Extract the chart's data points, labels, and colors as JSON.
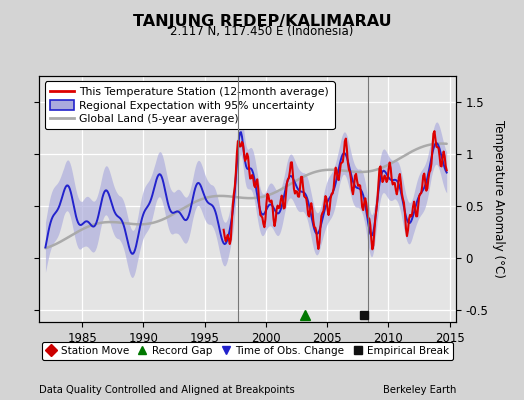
{
  "title": "TANJUNG REDEP/KALIMARAU",
  "subtitle": "2.117 N, 117.450 E (Indonesia)",
  "ylabel": "Temperature Anomaly (°C)",
  "xlabel_left": "Data Quality Controlled and Aligned at Breakpoints",
  "xlabel_right": "Berkeley Earth",
  "ylim": [
    -0.62,
    1.75
  ],
  "xlim": [
    1981.5,
    2015.5
  ],
  "yticks": [
    -0.5,
    0.0,
    0.5,
    1.0,
    1.5
  ],
  "xticks": [
    1985,
    1990,
    1995,
    2000,
    2005,
    2010,
    2015
  ],
  "bg_color": "#d4d4d4",
  "plot_bg_color": "#e4e4e4",
  "grid_color": "#ffffff",
  "red_color": "#dd0000",
  "blue_color": "#2222cc",
  "blue_fill_color": "#aaaadd",
  "gray_color": "#aaaaaa",
  "vertical_lines": [
    1997.75,
    2008.3
  ],
  "marker_green_x": 2003.2,
  "marker_black_x": 2008.0,
  "marker_y": -0.55,
  "legend_labels": [
    "This Temperature Station (12-month average)",
    "Regional Expectation with 95% uncertainty",
    "Global Land (5-year average)"
  ],
  "bottom_legend_labels": [
    "Station Move",
    "Record Gap",
    "Time of Obs. Change",
    "Empirical Break"
  ]
}
